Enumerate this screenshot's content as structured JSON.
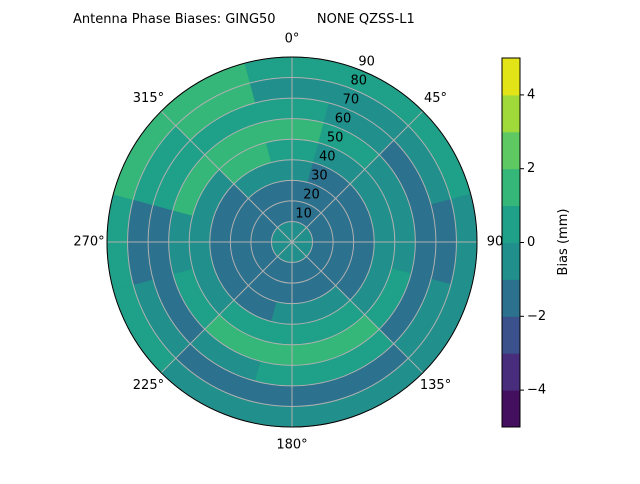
{
  "chart_data": {
    "type": "heatmap",
    "projection": "polar",
    "title": "Antenna Phase Biases: GING50          NONE QZSS-L1",
    "colorbar_label": "Bias (mm)",
    "colormap": "viridis",
    "levels": [
      -5,
      -4,
      -3,
      -2,
      -1,
      0,
      1,
      2,
      3,
      4,
      5
    ],
    "level_colors": [
      "#440f5f",
      "#472d7b",
      "#3b518b",
      "#2c718e",
      "#21908c",
      "#1fa088",
      "#35b779",
      "#5ec962",
      "#9fda3a",
      "#e3e418"
    ],
    "colorbar_ticks": [
      "4",
      "2",
      "0",
      "−2",
      "−4"
    ],
    "colorbar_tick_values": [
      4,
      2,
      0,
      -2,
      -4
    ],
    "colorbar_range": [
      -5,
      5
    ],
    "angle_ticks": [
      "0°",
      "45°",
      "90",
      "135°",
      "180°",
      "225°",
      "270°",
      "315°"
    ],
    "angle_tick_values": [
      0,
      45,
      90,
      135,
      180,
      225,
      270,
      315
    ],
    "radial_ticks": [
      "10",
      "20",
      "30",
      "40",
      "50",
      "60",
      "70",
      "80",
      "90"
    ],
    "radial_tick_values": [
      10,
      20,
      30,
      40,
      50,
      60,
      70,
      80,
      90
    ],
    "radial_range": [
      0,
      90
    ],
    "theta_zero": "N",
    "theta_direction": "clockwise",
    "grid": true,
    "azimuth": [
      0,
      30,
      60,
      90,
      120,
      150,
      180,
      210,
      240,
      270,
      300,
      330
    ],
    "zenith": [
      5,
      15,
      25,
      35,
      45,
      55,
      65,
      75,
      85
    ],
    "z": [
      [
        -0.5,
        -0.5,
        -0.5,
        -0.5,
        -0.5,
        -0.5,
        -0.5,
        -0.5,
        -0.5,
        -0.5,
        -0.5,
        -0.5
      ],
      [
        -1.5,
        -1.5,
        -1.5,
        -1.5,
        -1.5,
        -1.5,
        -1.5,
        -1.5,
        -1.5,
        -1.5,
        -1.5,
        -1.5
      ],
      [
        -1.5,
        -1.5,
        -1.5,
        -1.5,
        -1.5,
        -1.5,
        -1.5,
        -1.5,
        -1.5,
        -1.5,
        -1.5,
        -1.5
      ],
      [
        -0.5,
        -1.5,
        -1.5,
        -1.5,
        -1.5,
        -0.5,
        -0.5,
        -1.5,
        -1.5,
        -1.5,
        -1.5,
        -0.5
      ],
      [
        0.5,
        -0.5,
        -0.5,
        -0.5,
        -0.5,
        0.5,
        0.5,
        0.5,
        -0.5,
        -0.5,
        -0.5,
        1.5
      ],
      [
        1.5,
        0.5,
        -0.5,
        -0.5,
        0.5,
        1.5,
        1.5,
        1.5,
        0.5,
        -0.5,
        1.5,
        1.5
      ],
      [
        0.5,
        -0.5,
        -1.5,
        -1.5,
        -1.5,
        0.5,
        0.5,
        -0.5,
        -1.5,
        -1.5,
        0.5,
        0.5
      ],
      [
        -0.5,
        -0.5,
        -0.5,
        -1.5,
        -0.5,
        -1.5,
        -1.5,
        -1.5,
        -0.5,
        -1.5,
        0.5,
        1.5
      ],
      [
        0.5,
        0.5,
        0.5,
        -0.5,
        -0.5,
        -0.5,
        -0.5,
        -0.5,
        0.5,
        0.5,
        1.5,
        1.5
      ]
    ]
  }
}
